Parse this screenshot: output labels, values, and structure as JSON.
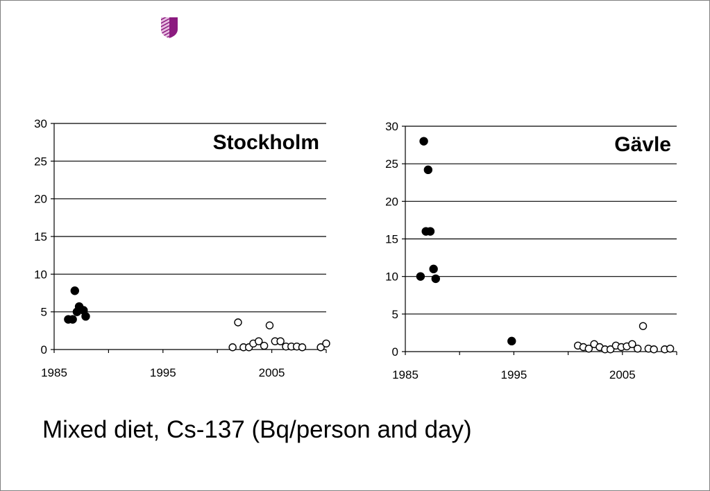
{
  "slide": {
    "caption": "Mixed diet, Cs-137 (Bq/person and day)",
    "logo_icon": "shield-logo-icon",
    "accent_color": "#8b1a7f"
  },
  "chart_data": [
    {
      "type": "scatter",
      "title": "Stockholm",
      "xlabel": "",
      "ylabel": "",
      "xlim": [
        1985,
        2010
      ],
      "ylim": [
        0,
        30
      ],
      "x_ticks": [
        "1985",
        "1995",
        "2005"
      ],
      "y_ticks": [
        "0",
        "5",
        "10",
        "15",
        "20",
        "25",
        "30"
      ],
      "grid": "horizontal",
      "series": [
        {
          "marker": "filled-circle",
          "color": "#000000",
          "points": [
            [
              1986.3,
              4.0
            ],
            [
              1986.7,
              4.0
            ],
            [
              1986.9,
              7.8
            ],
            [
              1987.1,
              5.0
            ],
            [
              1987.3,
              5.7
            ],
            [
              1987.7,
              5.2
            ],
            [
              1987.9,
              4.4
            ]
          ]
        },
        {
          "marker": "open-circle",
          "color": "#000000",
          "points": [
            [
              2001.4,
              0.3
            ],
            [
              2001.9,
              3.6
            ],
            [
              2002.4,
              0.3
            ],
            [
              2002.9,
              0.3
            ],
            [
              2003.3,
              0.8
            ],
            [
              2003.8,
              1.1
            ],
            [
              2004.3,
              0.5
            ],
            [
              2004.8,
              3.2
            ],
            [
              2005.3,
              1.1
            ],
            [
              2005.8,
              1.1
            ],
            [
              2006.3,
              0.4
            ],
            [
              2006.8,
              0.4
            ],
            [
              2007.3,
              0.4
            ],
            [
              2007.8,
              0.3
            ],
            [
              2009.5,
              0.3
            ],
            [
              2010.0,
              0.8
            ]
          ]
        }
      ]
    },
    {
      "type": "scatter",
      "title": "Gävle",
      "xlabel": "",
      "ylabel": "",
      "xlim": [
        1985,
        2010
      ],
      "ylim": [
        0,
        30
      ],
      "x_ticks": [
        "1985",
        "1995",
        "2005"
      ],
      "y_ticks": [
        "0",
        "5",
        "10",
        "15",
        "20",
        "25",
        "30"
      ],
      "grid": "horizontal",
      "series": [
        {
          "marker": "filled-circle",
          "color": "#000000",
          "points": [
            [
              1986.4,
              10.0
            ],
            [
              1986.7,
              28.0
            ],
            [
              1986.9,
              16.0
            ],
            [
              1987.1,
              24.2
            ],
            [
              1987.3,
              16.0
            ],
            [
              1987.6,
              11.0
            ],
            [
              1987.8,
              9.7
            ],
            [
              1994.8,
              1.4
            ]
          ]
        },
        {
          "marker": "open-circle",
          "color": "#000000",
          "points": [
            [
              2000.9,
              0.8
            ],
            [
              2001.4,
              0.6
            ],
            [
              2001.9,
              0.4
            ],
            [
              2002.4,
              1.0
            ],
            [
              2002.9,
              0.6
            ],
            [
              2003.4,
              0.3
            ],
            [
              2003.9,
              0.3
            ],
            [
              2004.4,
              0.8
            ],
            [
              2004.9,
              0.6
            ],
            [
              2005.4,
              0.7
            ],
            [
              2005.9,
              1.0
            ],
            [
              2006.4,
              0.4
            ],
            [
              2006.9,
              3.4
            ],
            [
              2007.4,
              0.4
            ],
            [
              2007.9,
              0.3
            ],
            [
              2008.9,
              0.3
            ],
            [
              2009.4,
              0.4
            ]
          ]
        }
      ]
    }
  ]
}
